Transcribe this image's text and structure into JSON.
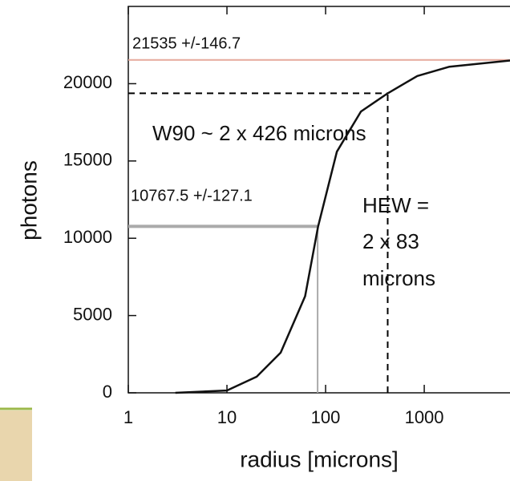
{
  "chart_data": {
    "type": "line",
    "x_label": "radius [microns]",
    "y_label": "photons",
    "xscale": "log",
    "x": [
      3,
      10,
      20,
      35,
      62,
      84,
      130,
      228,
      426,
      850,
      1800,
      7400
    ],
    "values": [
      0,
      150,
      1040,
      2600,
      6250,
      10767.5,
      15600,
      18200,
      19380,
      20500,
      21100,
      21500
    ],
    "color": "#111111",
    "xlim": [
      1,
      7400
    ],
    "xticks": [
      1,
      10,
      100,
      1000
    ],
    "ylim": [
      0,
      25000
    ],
    "yticks": [
      0,
      5000,
      10000,
      15000,
      20000
    ],
    "total_line": {
      "y": 21535,
      "color": "#e6a99c"
    },
    "markers": [
      {
        "x": 83,
        "y": 10767.5,
        "color": "#aaaaaa",
        "dash": false
      },
      {
        "x": 426,
        "y": 19381.5,
        "color": "#000000",
        "dash": true
      }
    ],
    "annotations": [
      "21535 +/-146.7",
      "W90 ~ 2 x 426 microns",
      "10767.5 +/-127.1",
      "HEW =",
      "2 x 83",
      "microns"
    ]
  }
}
